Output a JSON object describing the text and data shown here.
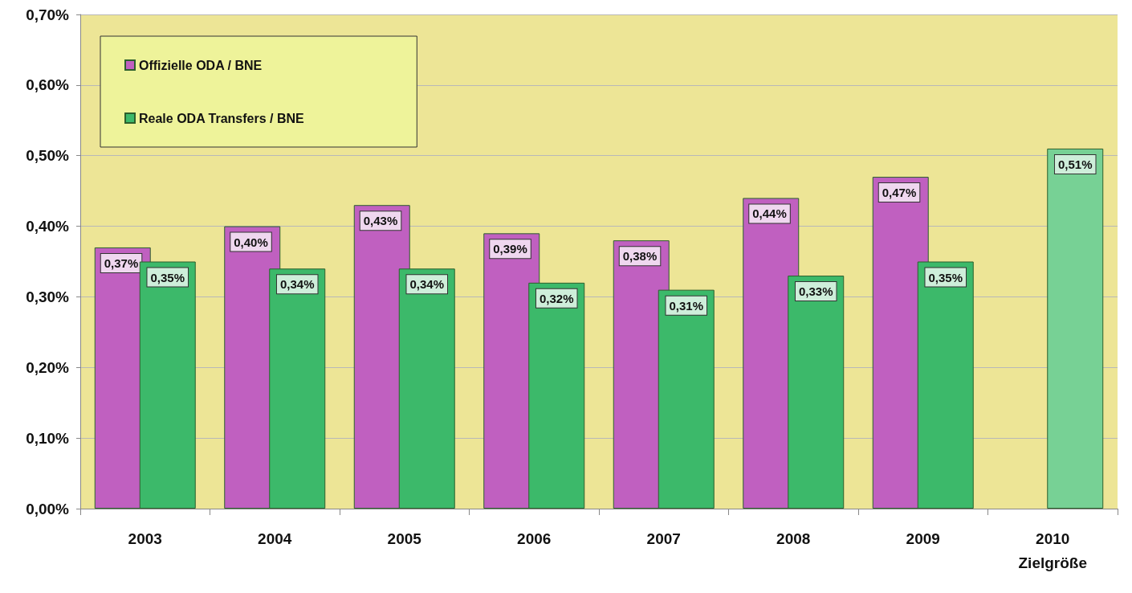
{
  "chart_data": {
    "type": "bar",
    "categories": [
      "2003",
      "2004",
      "2005",
      "2006",
      "2007",
      "2008",
      "2009",
      "2010\nZielgröße"
    ],
    "series": [
      {
        "name": "Offizielle ODA / BNE",
        "color": "#c060c0",
        "values": [
          0.37,
          0.4,
          0.43,
          0.39,
          0.38,
          0.44,
          0.47,
          null
        ],
        "value_labels": [
          "0,37%",
          "0,40%",
          "0,43%",
          "0,39%",
          "0,38%",
          "0,44%",
          "0,47%",
          null
        ]
      },
      {
        "name": "Reale ODA Transfers / BNE",
        "color": "#3cb96a",
        "colors": [
          "#3cb96a",
          "#3cb96a",
          "#3cb96a",
          "#3cb96a",
          "#3cb96a",
          "#3cb96a",
          "#3cb96a",
          "#77d195"
        ],
        "values": [
          0.35,
          0.34,
          0.34,
          0.32,
          0.31,
          0.33,
          0.35,
          0.51
        ],
        "value_labels": [
          "0,35%",
          "0,34%",
          "0,34%",
          "0,32%",
          "0,31%",
          "0,33%",
          "0,35%",
          "0,51%"
        ]
      }
    ],
    "ylim": [
      0,
      0.7
    ],
    "yticks": [
      {
        "value": 0,
        "label": "0,00%"
      },
      {
        "value": 0.1,
        "label": "0,10%"
      },
      {
        "value": 0.2,
        "label": "0,20%"
      },
      {
        "value": 0.3,
        "label": "0,30%"
      },
      {
        "value": 0.4,
        "label": "0,40%"
      },
      {
        "value": 0.5,
        "label": "0,50%"
      },
      {
        "value": 0.6,
        "label": "0,60%"
      },
      {
        "value": 0.7,
        "label": "0,70%"
      }
    ],
    "grid": "y",
    "legend": "top left"
  }
}
